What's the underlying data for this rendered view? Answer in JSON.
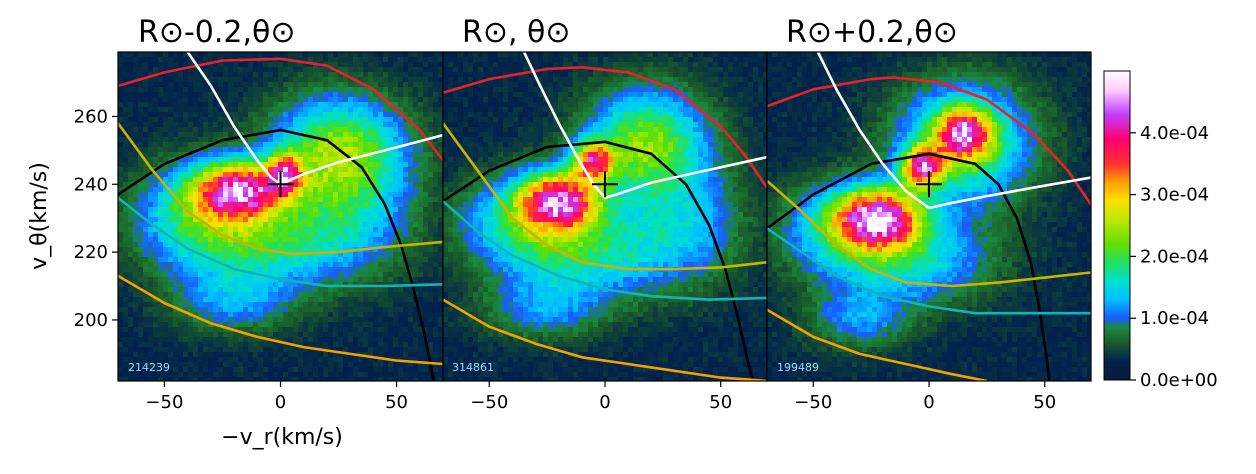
{
  "chart_data": [
    {
      "type": "heatmap",
      "title": "R⊙-0.2,θ⊙",
      "xlabel": "−v_r(km/s)",
      "ylabel": "v_θ(km/s)",
      "xlim": [
        -70,
        70
      ],
      "ylim": [
        182,
        279
      ],
      "xticks": [
        -50,
        0,
        50
      ],
      "yticks": [
        200,
        220,
        240,
        260
      ],
      "annotation": "214239",
      "marker": {
        "x": 0,
        "y": 240
      },
      "blobs": [
        {
          "x": -18,
          "y": 238,
          "sx": 14,
          "sy": 6,
          "a": 3.6
        },
        {
          "x": 2,
          "y": 243,
          "sx": 5,
          "sy": 4,
          "a": 2.4
        },
        {
          "x": 25,
          "y": 250,
          "sx": 20,
          "sy": 11,
          "a": 2.0
        },
        {
          "x": -12,
          "y": 222,
          "sx": 25,
          "sy": 9,
          "a": 1.4
        },
        {
          "x": -40,
          "y": 232,
          "sx": 18,
          "sy": 10,
          "a": 1.0
        },
        {
          "x": -20,
          "y": 205,
          "sx": 18,
          "sy": 6,
          "a": 0.8
        },
        {
          "x": 30,
          "y": 230,
          "sx": 20,
          "sy": 12,
          "a": 0.9
        }
      ],
      "curves": [
        {
          "color": "#e8212b",
          "points": [
            [
              -70,
              269
            ],
            [
              -50,
              273
            ],
            [
              -25,
              276.5
            ],
            [
              0,
              277
            ],
            [
              20,
              275
            ],
            [
              40,
              268
            ],
            [
              60,
              256
            ],
            [
              70,
              247
            ]
          ]
        },
        {
          "color": "#000000",
          "points": [
            [
              -70,
              237
            ],
            [
              -50,
              246
            ],
            [
              -25,
              253
            ],
            [
              0,
              256
            ],
            [
              20,
              253
            ],
            [
              35,
              245
            ],
            [
              45,
              234
            ],
            [
              52,
              222
            ],
            [
              57,
              210
            ],
            [
              62,
              196
            ],
            [
              66,
              182
            ]
          ]
        },
        {
          "color": "#ffffff",
          "points": [
            [
              -40,
              279
            ],
            [
              -30,
              269
            ],
            [
              -20,
              257
            ],
            [
              -10,
              247
            ],
            [
              -4,
              242
            ],
            [
              0,
              240
            ],
            [
              10,
              243
            ],
            [
              25,
              246.5
            ],
            [
              45,
              250
            ],
            [
              70,
              254.5
            ]
          ]
        },
        {
          "color": "#c8b400",
          "points": [
            [
              -70,
              258
            ],
            [
              -55,
              244
            ],
            [
              -40,
              232
            ],
            [
              -25,
              225
            ],
            [
              -10,
              221
            ],
            [
              5,
              219.5
            ],
            [
              25,
              220
            ],
            [
              45,
              221.5
            ],
            [
              70,
              223
            ]
          ]
        },
        {
          "color": "#12b5b5",
          "points": [
            [
              -70,
              236
            ],
            [
              -55,
              228
            ],
            [
              -40,
              221
            ],
            [
              -20,
              215
            ],
            [
              0,
              212
            ],
            [
              20,
              210
            ],
            [
              45,
              210
            ],
            [
              70,
              210.5
            ]
          ]
        },
        {
          "color": "#f5a000",
          "points": [
            [
              -70,
              213
            ],
            [
              -50,
              205
            ],
            [
              -30,
              199
            ],
            [
              -10,
              195
            ],
            [
              10,
              192
            ],
            [
              30,
              190
            ],
            [
              50,
              188
            ],
            [
              70,
              187
            ]
          ]
        }
      ]
    },
    {
      "type": "heatmap",
      "title": "R⊙, θ⊙",
      "xlim": [
        -70,
        70
      ],
      "ylim": [
        182,
        279
      ],
      "xticks": [
        -50,
        0,
        50
      ],
      "annotation": "314861",
      "marker": {
        "x": 0,
        "y": 240
      },
      "blobs": [
        {
          "x": -20,
          "y": 235,
          "sx": 12,
          "sy": 6,
          "a": 3.6
        },
        {
          "x": -5,
          "y": 247,
          "sx": 6,
          "sy": 4,
          "a": 2.7
        },
        {
          "x": 18,
          "y": 252,
          "sx": 18,
          "sy": 11,
          "a": 2.0
        },
        {
          "x": -10,
          "y": 220,
          "sx": 25,
          "sy": 9,
          "a": 1.4
        },
        {
          "x": -40,
          "y": 230,
          "sx": 18,
          "sy": 9,
          "a": 1.0
        },
        {
          "x": -25,
          "y": 203,
          "sx": 18,
          "sy": 6,
          "a": 0.8
        },
        {
          "x": 35,
          "y": 228,
          "sx": 18,
          "sy": 12,
          "a": 0.9
        }
      ],
      "curves": [
        {
          "color": "#e8212b",
          "points": [
            [
              -70,
              267
            ],
            [
              -50,
              271
            ],
            [
              -25,
              274
            ],
            [
              -10,
              274.5
            ],
            [
              10,
              273
            ],
            [
              30,
              268
            ],
            [
              50,
              257
            ],
            [
              60,
              249
            ],
            [
              70,
              239
            ]
          ]
        },
        {
          "color": "#000000",
          "points": [
            [
              -70,
              235
            ],
            [
              -50,
              244
            ],
            [
              -25,
              251
            ],
            [
              0,
              252.5
            ],
            [
              20,
              249
            ],
            [
              35,
              240
            ],
            [
              45,
              228
            ],
            [
              52,
              215
            ],
            [
              57,
              202
            ],
            [
              62,
              187
            ],
            [
              64,
              182
            ]
          ]
        },
        {
          "color": "#ffffff",
          "points": [
            [
              -35,
              279
            ],
            [
              -28,
              269
            ],
            [
              -20,
              258
            ],
            [
              -12,
              248
            ],
            [
              -5,
              240
            ],
            [
              0,
              236
            ],
            [
              5,
              237
            ],
            [
              20,
              240.5
            ],
            [
              40,
              243.5
            ],
            [
              70,
              248
            ]
          ]
        },
        {
          "color": "#c8b400",
          "points": [
            [
              -70,
              258
            ],
            [
              -55,
              244
            ],
            [
              -40,
              230
            ],
            [
              -25,
              222
            ],
            [
              -10,
              217
            ],
            [
              10,
              215
            ],
            [
              30,
              215
            ],
            [
              50,
              215.5
            ],
            [
              70,
              217
            ]
          ]
        },
        {
          "color": "#12b5b5",
          "points": [
            [
              -70,
              235
            ],
            [
              -55,
              226
            ],
            [
              -40,
              219
            ],
            [
              -20,
              213
            ],
            [
              0,
              209
            ],
            [
              20,
              207
            ],
            [
              45,
              206
            ],
            [
              70,
              206.5
            ]
          ]
        },
        {
          "color": "#f5a000",
          "points": [
            [
              -70,
              206
            ],
            [
              -50,
              198
            ],
            [
              -30,
              193
            ],
            [
              -10,
              189
            ],
            [
              10,
              187
            ],
            [
              30,
              185
            ],
            [
              50,
              183
            ],
            [
              70,
              182
            ]
          ]
        }
      ]
    },
    {
      "type": "heatmap",
      "title": "R⊙+0.2,θ⊙",
      "xlim": [
        -70,
        70
      ],
      "ylim": [
        182,
        279
      ],
      "xticks": [
        -50,
        0,
        50
      ],
      "annotation": "199489",
      "marker": {
        "x": 0,
        "y": 240
      },
      "blobs": [
        {
          "x": -22,
          "y": 230,
          "sx": 13,
          "sy": 6,
          "a": 3.6
        },
        {
          "x": -3,
          "y": 245,
          "sx": 6,
          "sy": 4,
          "a": 3.0
        },
        {
          "x": 15,
          "y": 255,
          "sx": 8,
          "sy": 5,
          "a": 2.6
        },
        {
          "x": 15,
          "y": 252,
          "sx": 20,
          "sy": 12,
          "a": 1.9
        },
        {
          "x": -10,
          "y": 218,
          "sx": 25,
          "sy": 9,
          "a": 1.3
        },
        {
          "x": -40,
          "y": 228,
          "sx": 18,
          "sy": 9,
          "a": 1.0
        },
        {
          "x": -30,
          "y": 200,
          "sx": 15,
          "sy": 6,
          "a": 0.8
        }
      ],
      "curves": [
        {
          "color": "#e8212b",
          "points": [
            [
              -70,
              263
            ],
            [
              -50,
              268
            ],
            [
              -25,
              271
            ],
            [
              -15,
              271.5
            ],
            [
              5,
              270
            ],
            [
              25,
              265
            ],
            [
              45,
              255
            ],
            [
              60,
              244
            ],
            [
              70,
              234
            ]
          ]
        },
        {
          "color": "#000000",
          "points": [
            [
              -70,
              227
            ],
            [
              -50,
              237
            ],
            [
              -25,
              246
            ],
            [
              0,
              249
            ],
            [
              20,
              246
            ],
            [
              30,
              240
            ],
            [
              38,
              230
            ],
            [
              44,
              217
            ],
            [
              48,
              202
            ],
            [
              51,
              188
            ],
            [
              52,
              182
            ]
          ]
        },
        {
          "color": "#ffffff",
          "points": [
            [
              -48,
              279
            ],
            [
              -40,
              268
            ],
            [
              -30,
              256
            ],
            [
              -20,
              246
            ],
            [
              -10,
              238
            ],
            [
              0,
              233
            ],
            [
              10,
              234.5
            ],
            [
              25,
              236.5
            ],
            [
              45,
              239
            ],
            [
              70,
              242
            ]
          ]
        },
        {
          "color": "#c8b400",
          "points": [
            [
              -70,
              241
            ],
            [
              -55,
              232
            ],
            [
              -40,
              222
            ],
            [
              -25,
              215
            ],
            [
              -10,
              211
            ],
            [
              10,
              210
            ],
            [
              30,
              211
            ],
            [
              50,
              212.5
            ],
            [
              70,
              214
            ]
          ]
        },
        {
          "color": "#12b5b5",
          "points": [
            [
              -70,
              227
            ],
            [
              -55,
              220
            ],
            [
              -40,
              213
            ],
            [
              -20,
              207
            ],
            [
              0,
              204
            ],
            [
              20,
              202
            ],
            [
              45,
              202
            ],
            [
              70,
              202
            ]
          ]
        },
        {
          "color": "#f5a000",
          "points": [
            [
              -70,
              203
            ],
            [
              -50,
              195
            ],
            [
              -30,
              190
            ],
            [
              -10,
              187
            ],
            [
              10,
              184
            ],
            [
              25,
              182
            ]
          ]
        }
      ]
    }
  ],
  "colorbar": {
    "ticks": [
      "0.0e+00",
      "1.0e-04",
      "2.0e-04",
      "3.0e-04",
      "4.0e-04"
    ],
    "tick_values": [
      0,
      1,
      2,
      3,
      4
    ],
    "max": 5,
    "colormap": [
      "#0a1a3a",
      "#00224d",
      "#1a5a2a",
      "#1a8a3a",
      "#1a5aff",
      "#00c0ff",
      "#00e0d0",
      "#20e060",
      "#60e000",
      "#c0e800",
      "#ffe000",
      "#ffa000",
      "#ff3030",
      "#ff0070",
      "#c040ff",
      "#ffd0ff",
      "#ffffff"
    ]
  }
}
